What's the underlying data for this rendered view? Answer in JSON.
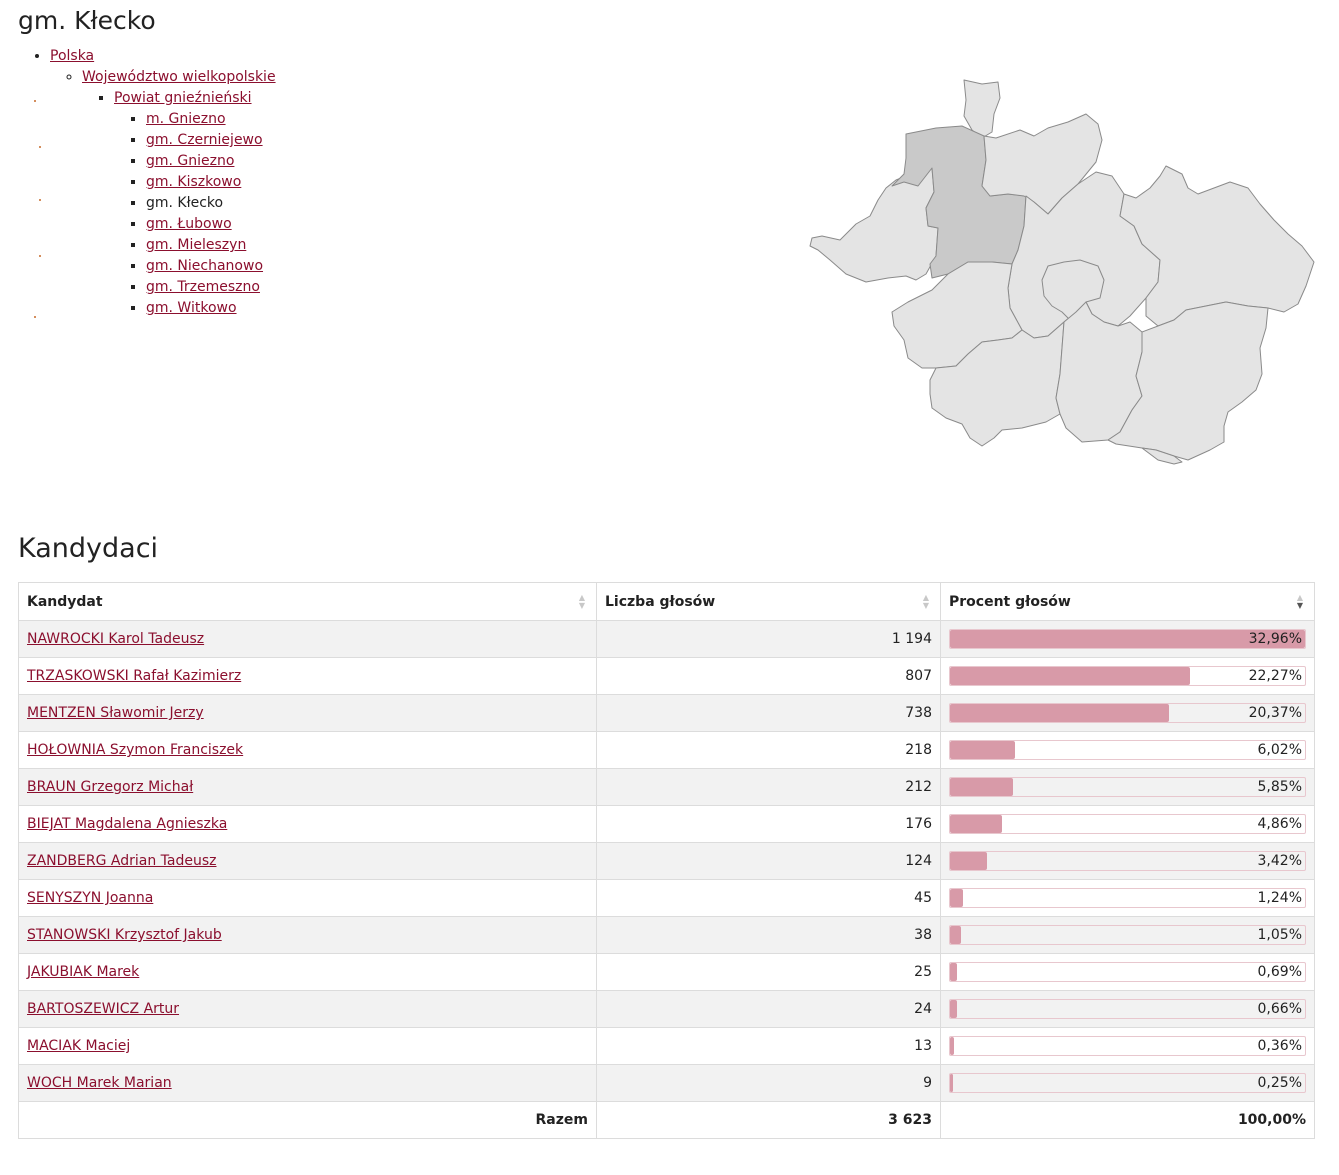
{
  "page": {
    "title": "gm. Kłecko"
  },
  "breadcrumb": {
    "level0": "Polska",
    "level1": "Województwo wielkopolskie",
    "level2": "Powiat gnieźnieński",
    "municipalities": [
      {
        "label": "m. Gniezno",
        "current": false
      },
      {
        "label": "gm. Czerniejewo",
        "current": false
      },
      {
        "label": "gm. Gniezno",
        "current": false
      },
      {
        "label": "gm. Kiszkowo",
        "current": false
      },
      {
        "label": "gm. Kłecko",
        "current": true
      },
      {
        "label": "gm. Łubowo",
        "current": false
      },
      {
        "label": "gm. Mieleszyn",
        "current": false
      },
      {
        "label": "gm. Niechanowo",
        "current": false
      },
      {
        "label": "gm. Trzemeszno",
        "current": false
      },
      {
        "label": "gm. Witkowo",
        "current": false
      }
    ]
  },
  "colors": {
    "link": "#8b0f2e",
    "bar_fill": "#d89aa8",
    "map_fill": "#e4e4e4",
    "map_active": "#c9c9c9"
  },
  "candidates_section": {
    "title": "Kandydaci",
    "columns": {
      "name": "Kandydat",
      "votes": "Liczba głosów",
      "percent": "Procent głosów"
    },
    "sort": {
      "column": "percent",
      "direction": "descending"
    },
    "rows": [
      {
        "name": "NAWROCKI Karol Tadeusz",
        "votes": "1 194",
        "percent": "32,96%",
        "share": 32.96
      },
      {
        "name": "TRZASKOWSKI Rafał Kazimierz",
        "votes": "807",
        "percent": "22,27%",
        "share": 22.27
      },
      {
        "name": "MENTZEN Sławomir Jerzy",
        "votes": "738",
        "percent": "20,37%",
        "share": 20.37
      },
      {
        "name": "HOŁOWNIA Szymon Franciszek",
        "votes": "218",
        "percent": "6,02%",
        "share": 6.02
      },
      {
        "name": "BRAUN Grzegorz Michał",
        "votes": "212",
        "percent": "5,85%",
        "share": 5.85
      },
      {
        "name": "BIEJAT Magdalena Agnieszka",
        "votes": "176",
        "percent": "4,86%",
        "share": 4.86
      },
      {
        "name": "ZANDBERG Adrian Tadeusz",
        "votes": "124",
        "percent": "3,42%",
        "share": 3.42
      },
      {
        "name": "SENYSZYN Joanna",
        "votes": "45",
        "percent": "1,24%",
        "share": 1.24
      },
      {
        "name": "STANOWSKI Krzysztof Jakub",
        "votes": "38",
        "percent": "1,05%",
        "share": 1.05
      },
      {
        "name": "JAKUBIAK Marek",
        "votes": "25",
        "percent": "0,69%",
        "share": 0.69
      },
      {
        "name": "BARTOSZEWICZ Artur",
        "votes": "24",
        "percent": "0,66%",
        "share": 0.66
      },
      {
        "name": "MACIAK Maciej",
        "votes": "13",
        "percent": "0,36%",
        "share": 0.36
      },
      {
        "name": "WOCH Marek Marian",
        "votes": "9",
        "percent": "0,25%",
        "share": 0.25
      }
    ],
    "total": {
      "label": "Razem",
      "votes": "3 623",
      "percent": "100,00%"
    }
  }
}
